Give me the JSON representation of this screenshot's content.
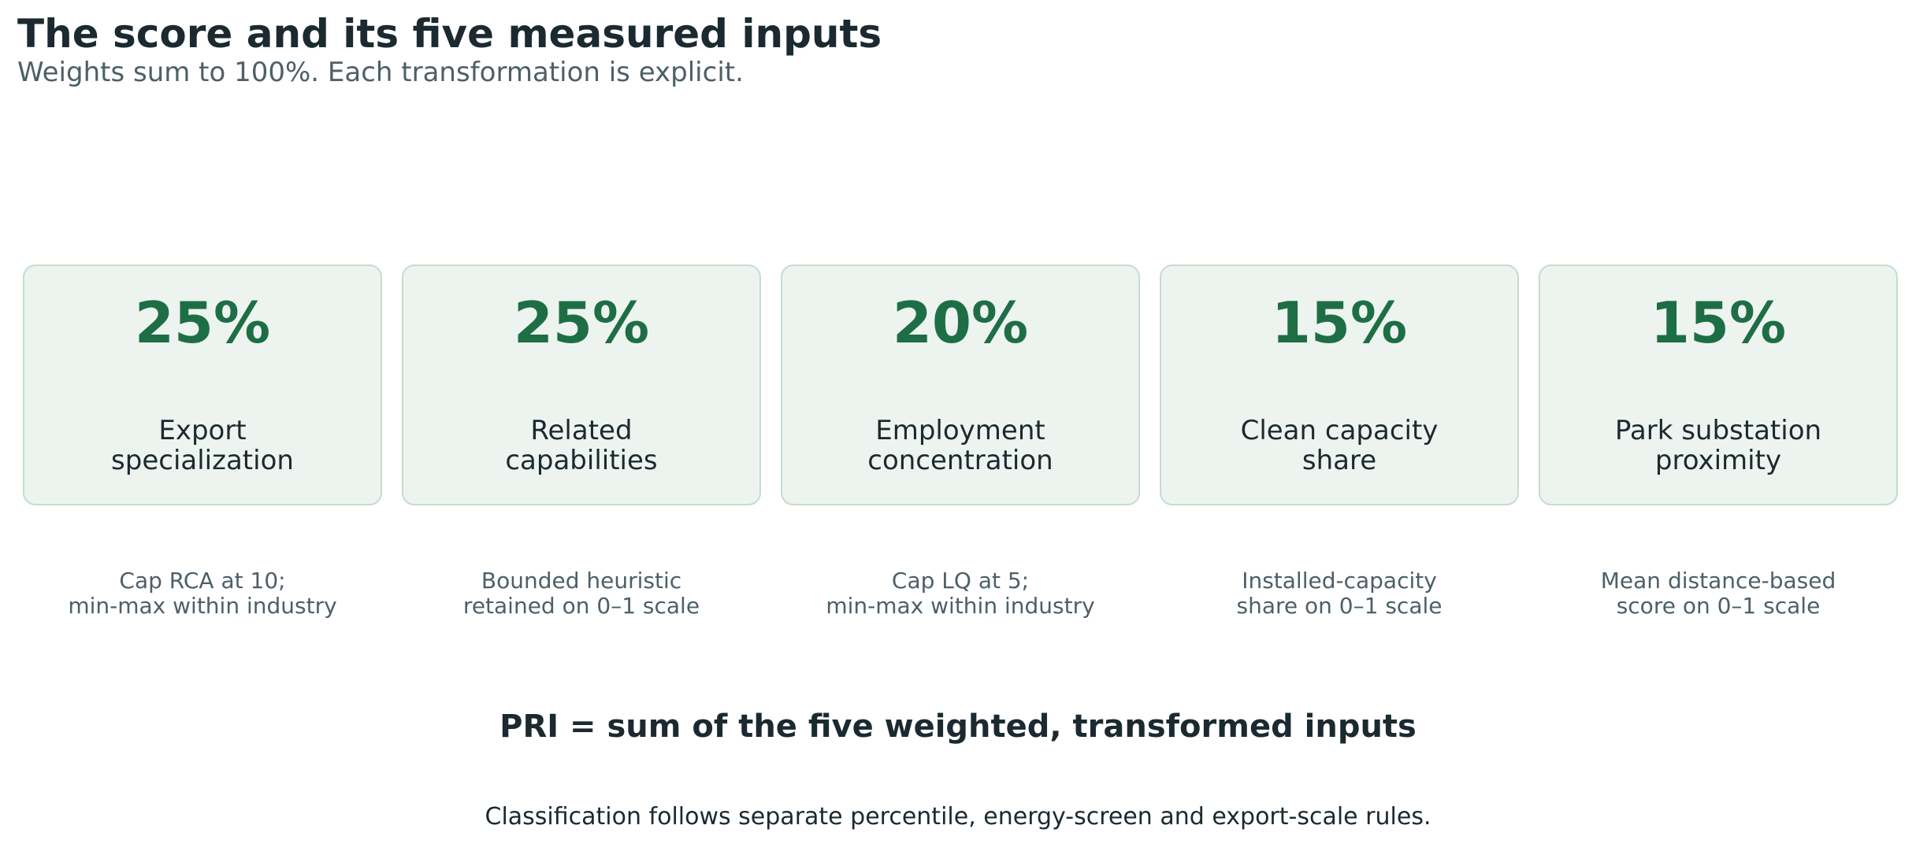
{
  "header": {
    "title": "The score and its five measured inputs",
    "subtitle": "Weights sum to 100%. Each transformation is explicit."
  },
  "inputs": [
    {
      "weight": "25%",
      "weight_value": 0.25,
      "label": "Export\nspecialization",
      "note": "Cap RCA at 10;\nmin-max within industry"
    },
    {
      "weight": "25%",
      "weight_value": 0.25,
      "label": "Related\ncapabilities",
      "note": "Bounded heuristic\nretained on 0–1 scale"
    },
    {
      "weight": "20%",
      "weight_value": 0.2,
      "label": "Employment\nconcentration",
      "note": "Cap LQ at 5;\nmin-max within industry"
    },
    {
      "weight": "15%",
      "weight_value": 0.15,
      "label": "Clean capacity\nshare",
      "note": "Installed-capacity\nshare on 0–1 scale"
    },
    {
      "weight": "15%",
      "weight_value": 0.15,
      "label": "Park substation\nproximity",
      "note": "Mean distance-based\nscore on 0–1 scale"
    }
  ],
  "formula": "PRI = sum of the five weighted, transformed inputs",
  "footnote": "Classification follows separate percentile, energy-screen and export-scale rules.",
  "colors": {
    "accent": "#1e6e45",
    "card_fill": "#edf4ef",
    "card_border": "#c6dccd",
    "text_dark": "#1b2a30",
    "text_muted": "#4d6068"
  }
}
